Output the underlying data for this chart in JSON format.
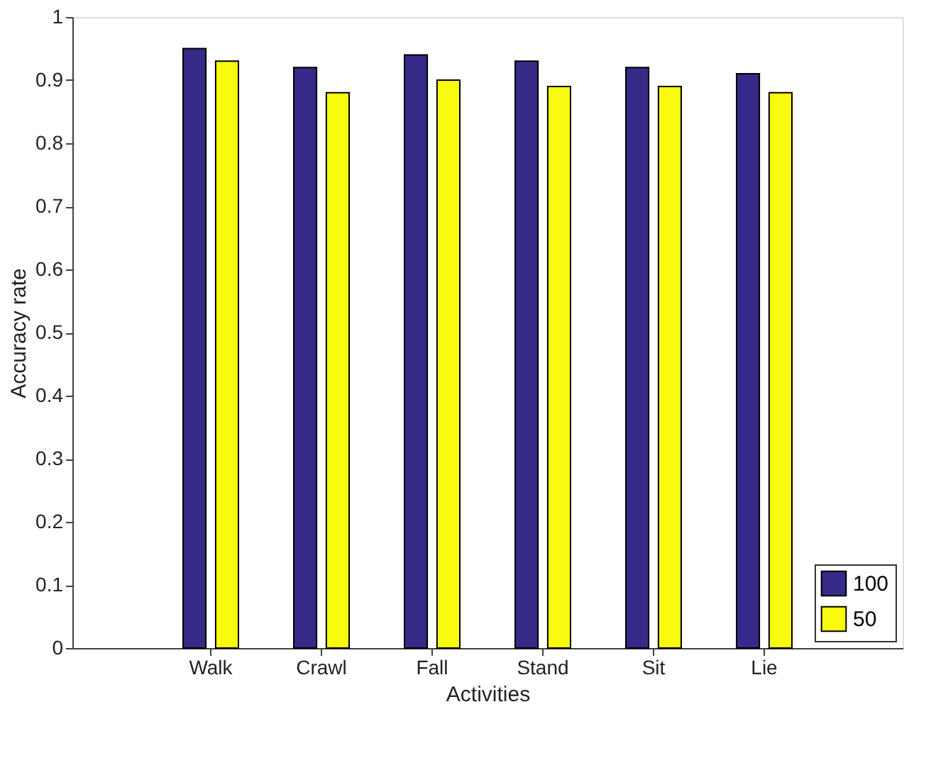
{
  "chart_data": {
    "type": "bar",
    "xlabel": "Activities",
    "ylabel": "Accuracy rate",
    "categories": [
      "Walk",
      "Crawl",
      "Fall",
      "Stand",
      "Sit",
      "Lie"
    ],
    "series": [
      {
        "name": "100",
        "color": "#352a87",
        "values": [
          0.95,
          0.92,
          0.94,
          0.93,
          0.92,
          0.91
        ]
      },
      {
        "name": "50",
        "color": "#f9fb0e",
        "values": [
          0.93,
          0.88,
          0.9,
          0.89,
          0.89,
          0.88
        ]
      }
    ],
    "ylim": [
      0,
      1
    ],
    "yticks": [
      0,
      0.1,
      0.2,
      0.3,
      0.4,
      0.5,
      0.6,
      0.7,
      0.8,
      0.9,
      1
    ],
    "grid": false,
    "legend": "bottom right"
  }
}
